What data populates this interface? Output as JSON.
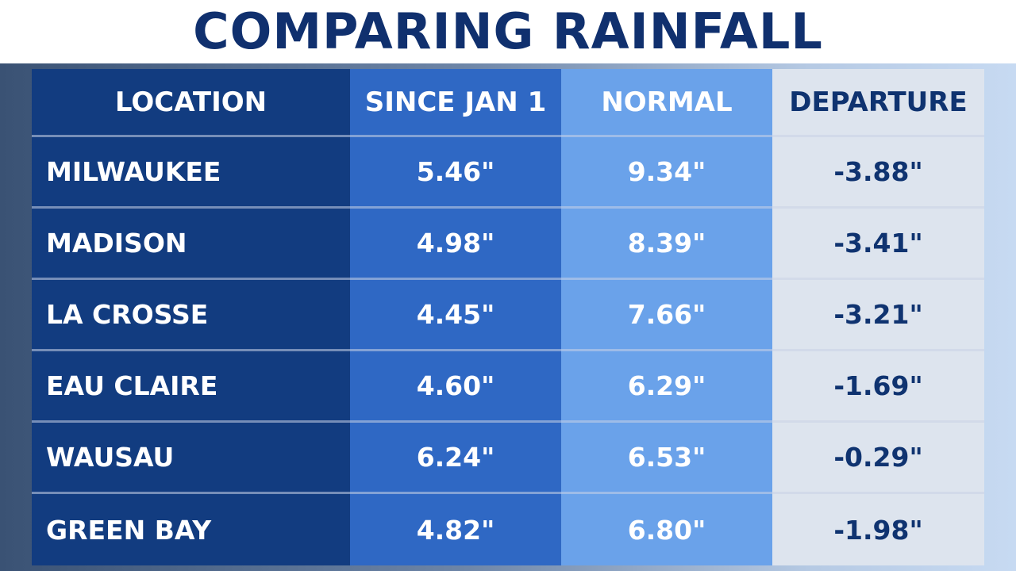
{
  "title": "COMPARING RAINFALL",
  "colors": {
    "title": "#10306e",
    "location_col": "#123c80",
    "since_col": "#2f68c4",
    "normal_col": "#6aa2ea",
    "departure_col": "#dde4ee",
    "departure_text": "#0f3370"
  },
  "chart_data": {
    "type": "table",
    "title": "COMPARING RAINFALL",
    "columns": [
      "LOCATION",
      "SINCE JAN 1",
      "NORMAL",
      "DEPARTURE"
    ],
    "rows": [
      [
        "MILWAUKEE",
        "5.46\"",
        "9.34\"",
        "-3.88\""
      ],
      [
        "MADISON",
        "4.98\"",
        "8.39\"",
        "-3.41\""
      ],
      [
        "LA CROSSE",
        "4.45\"",
        "7.66\"",
        "-3.21\""
      ],
      [
        "EAU CLAIRE",
        "4.60\"",
        "6.29\"",
        "-1.69\""
      ],
      [
        "WAUSAU",
        "6.24\"",
        "6.53\"",
        "-0.29\""
      ],
      [
        "GREEN BAY",
        "4.82\"",
        "6.80\"",
        "-1.98\""
      ]
    ]
  }
}
